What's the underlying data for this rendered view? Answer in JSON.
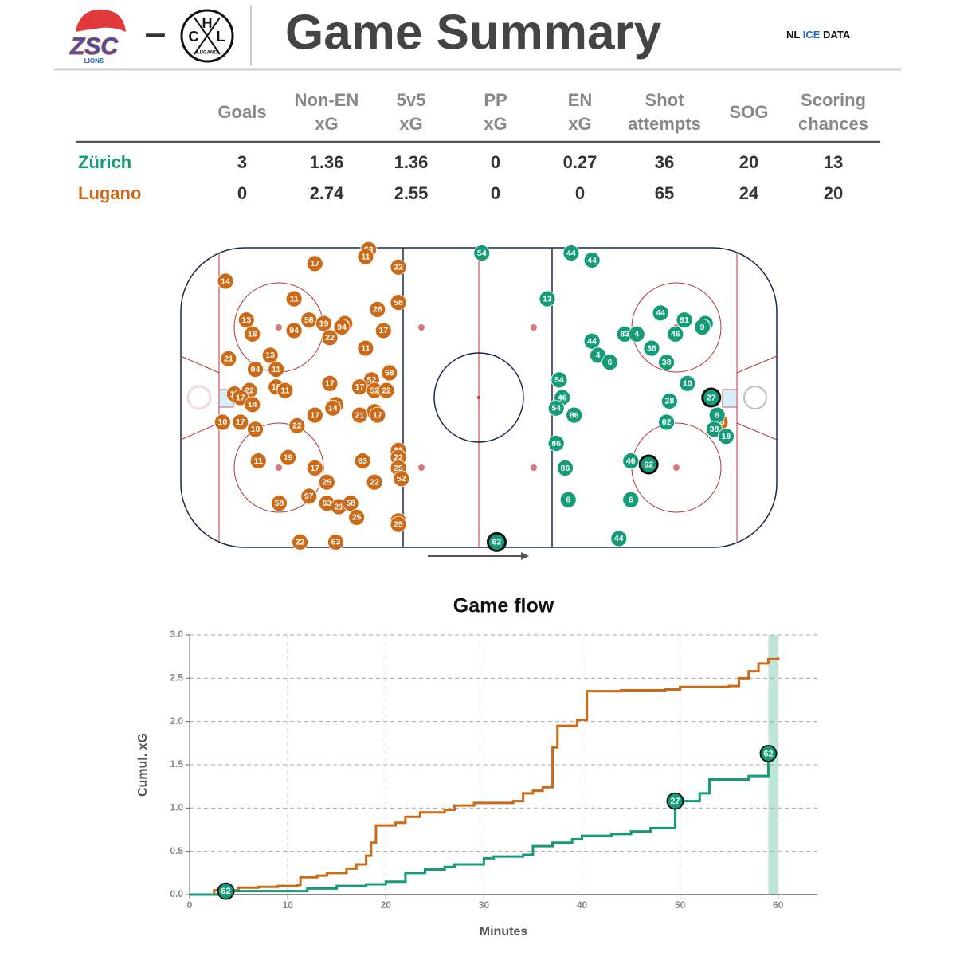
{
  "header": {
    "title": "Game Summary",
    "separator": "–",
    "brand": [
      "NL",
      "ICE",
      "DATA"
    ],
    "home_logo": {
      "text": "ZSC",
      "sub": "LIONS"
    },
    "away_logo": {
      "letters": [
        "C",
        "H",
        "L"
      ],
      "sub": "LUGANO"
    }
  },
  "table": {
    "columns": [
      [
        "Goals"
      ],
      [
        "Non-EN",
        "xG"
      ],
      [
        "5v5",
        "xG"
      ],
      [
        "PP",
        "xG"
      ],
      [
        "EN",
        "xG"
      ],
      [
        "Shot",
        "attempts"
      ],
      [
        "SOG"
      ],
      [
        "Scoring",
        "chances"
      ]
    ],
    "rows": [
      {
        "team": "Zürich",
        "color": "#149b77",
        "values": [
          3,
          1.36,
          1.36,
          0,
          0.27,
          36,
          20,
          13
        ]
      },
      {
        "team": "Lugano",
        "color": "#cc6a17",
        "values": [
          0,
          2.74,
          2.55,
          0,
          0,
          65,
          24,
          20
        ]
      }
    ]
  },
  "chart_data": [
    {
      "type": "scatter",
      "xlim": [
        -100,
        100
      ],
      "ylim": [
        -42.5,
        42.5
      ],
      "series": [
        {
          "color": "#cc6a17",
          "numbers": [
            63,
            11,
            17,
            22,
            14,
            58,
            11,
            26,
            58,
            13,
            19,
            22,
            94,
            94,
            17,
            16,
            22,
            11,
            13,
            21,
            94,
            11,
            52,
            58,
            17,
            17,
            52,
            22,
            10,
            11,
            22,
            10,
            17,
            14,
            13,
            14,
            9,
            21,
            17,
            17,
            10,
            17,
            10,
            22,
            22,
            22,
            11,
            19,
            63,
            17,
            25,
            52,
            25,
            22,
            97,
            63,
            21,
            58,
            58,
            25,
            63,
            25,
            22,
            63,
            25
          ],
          "x": [
            -37,
            -38,
            -55,
            -27,
            -85,
            -27,
            -62,
            -34,
            -57,
            -78,
            -52,
            -45,
            -46,
            -62,
            -32,
            -76,
            -50,
            -38,
            -70,
            -84,
            -75,
            -68,
            -36,
            -30,
            -50,
            -40,
            -35,
            -31,
            -68,
            -65,
            -77,
            -82,
            -80,
            -76,
            -48,
            -49,
            -35,
            -40,
            -34,
            -55,
            -86,
            -80,
            -75,
            -61,
            -27,
            -27,
            -74,
            -64,
            -39,
            -55,
            -27,
            -26,
            -51,
            -35,
            -57,
            -51,
            -47,
            -43,
            -67,
            -41,
            -27,
            -27,
            -60,
            -48,
            81
          ],
          "y": [
            42,
            40,
            38,
            37,
            33,
            27,
            28,
            25,
            22,
            22,
            21,
            21,
            20,
            19,
            19,
            18,
            17,
            14,
            12,
            11,
            8,
            8,
            5,
            7,
            4,
            3,
            2,
            2,
            3,
            2,
            2,
            1,
            0,
            -2,
            -2,
            -3,
            -4,
            -5,
            -5,
            -5,
            -7,
            -7,
            -9,
            -8,
            -15,
            -17,
            -18,
            -17,
            -18,
            -20,
            -20,
            -23,
            -24,
            -24,
            -28,
            -30,
            -31,
            -30,
            -30,
            -34,
            -35,
            -36,
            -41,
            -41,
            -7
          ],
          "goals": []
        },
        {
          "color": "#149b77",
          "numbers": [
            54,
            44,
            44,
            13,
            44,
            91,
            28,
            9,
            83,
            4,
            46,
            44,
            38,
            4,
            6,
            38,
            10,
            54,
            46,
            28,
            27,
            54,
            86,
            8,
            62,
            38,
            18,
            86,
            46,
            62,
            86,
            6,
            6,
            44,
            62
          ],
          "x": [
            1,
            31,
            38,
            23,
            61,
            69,
            76,
            75,
            49,
            53,
            66,
            38,
            58,
            40,
            44,
            63,
            70,
            27,
            28,
            64,
            78,
            26,
            32,
            80,
            63,
            79,
            83,
            26,
            51,
            57,
            29,
            30,
            51,
            47,
            6
          ],
          "y": [
            41,
            41,
            39,
            28,
            24,
            22,
            21,
            20,
            18,
            18,
            18,
            16,
            14,
            12,
            10,
            10,
            4,
            5,
            0,
            -1,
            0,
            -3,
            -5,
            -5,
            -7,
            -9,
            -11,
            -13,
            -18,
            -19,
            -20,
            -29,
            -29,
            -40,
            -41
          ],
          "goals": [
            20,
            29,
            34
          ]
        }
      ]
    },
    {
      "type": "line",
      "title": "Game flow",
      "xlabel": "Minutes",
      "ylabel": "Cumul. xG",
      "xlim": [
        0,
        64
      ],
      "ylim": [
        0,
        3.0
      ],
      "xticks": [
        0,
        10,
        20,
        30,
        40,
        50,
        60
      ],
      "yticks": [
        {
          "value": 0,
          "label": "0.0"
        },
        {
          "value": 0.5,
          "label": "0.5"
        },
        {
          "value": 1,
          "label": "1.0"
        },
        {
          "value": 1.5,
          "label": "1.5"
        },
        {
          "value": 2,
          "label": "2.0"
        },
        {
          "value": 2.5,
          "label": "2.5"
        },
        {
          "value": 3,
          "label": "3.0"
        }
      ],
      "grid": true,
      "highlight": [
        59,
        60
      ],
      "series": [
        {
          "color": "#cc6a17",
          "x": [
            0,
            2.5,
            5,
            7,
            9,
            11,
            11.3,
            13,
            14,
            16,
            17,
            18,
            18.5,
            19,
            21,
            22,
            23.5,
            26,
            27,
            29,
            33,
            34,
            35,
            36,
            37,
            37.5,
            39.5,
            40.5,
            44,
            48.5,
            50,
            55,
            56,
            57,
            58,
            59,
            60
          ],
          "values": [
            0,
            0.05,
            0.08,
            0.09,
            0.1,
            0.11,
            0.2,
            0.22,
            0.25,
            0.3,
            0.35,
            0.45,
            0.6,
            0.8,
            0.83,
            0.9,
            0.95,
            0.98,
            1.03,
            1.06,
            1.08,
            1.17,
            1.2,
            1.24,
            1.7,
            1.95,
            2.02,
            2.35,
            2.36,
            2.37,
            2.4,
            2.41,
            2.5,
            2.58,
            2.67,
            2.72,
            2.74
          ]
        },
        {
          "color": "#149b77",
          "x": [
            0,
            3.7,
            12,
            15,
            18,
            20,
            22,
            24,
            26,
            27,
            30,
            31,
            34,
            35,
            37,
            39,
            40,
            43,
            45,
            47,
            49.5,
            49.5,
            52,
            53,
            57,
            59,
            59,
            60
          ],
          "values": [
            0,
            0.04,
            0.07,
            0.1,
            0.12,
            0.15,
            0.25,
            0.29,
            0.32,
            0.35,
            0.42,
            0.44,
            0.46,
            0.56,
            0.6,
            0.64,
            0.68,
            0.7,
            0.73,
            0.77,
            0.79,
            1.08,
            1.17,
            1.33,
            1.37,
            1.38,
            1.63,
            1.63
          ]
        }
      ],
      "goals": {
        "color": "#149b77",
        "x": [
          3.7,
          49.5,
          59
        ],
        "y": [
          0.04,
          1.08,
          1.63
        ],
        "labels": [
          62,
          27,
          62
        ]
      }
    }
  ]
}
